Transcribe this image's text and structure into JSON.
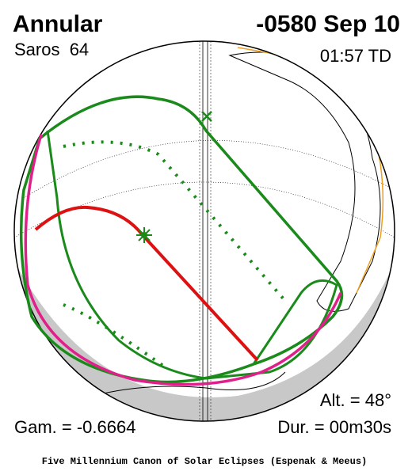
{
  "header": {
    "eclipse_type": "Annular",
    "saros": "Saros  64",
    "date": "-0580 Sep 10",
    "time": "01:57 TD"
  },
  "stats": {
    "altitude": "Alt. = 48°",
    "gamma": "Gam. = -0.6664",
    "duration": "Dur. = 00m30s"
  },
  "footer": "Five Millennium Canon of Solar Eclipses (Espenak & Meeus)"
}
